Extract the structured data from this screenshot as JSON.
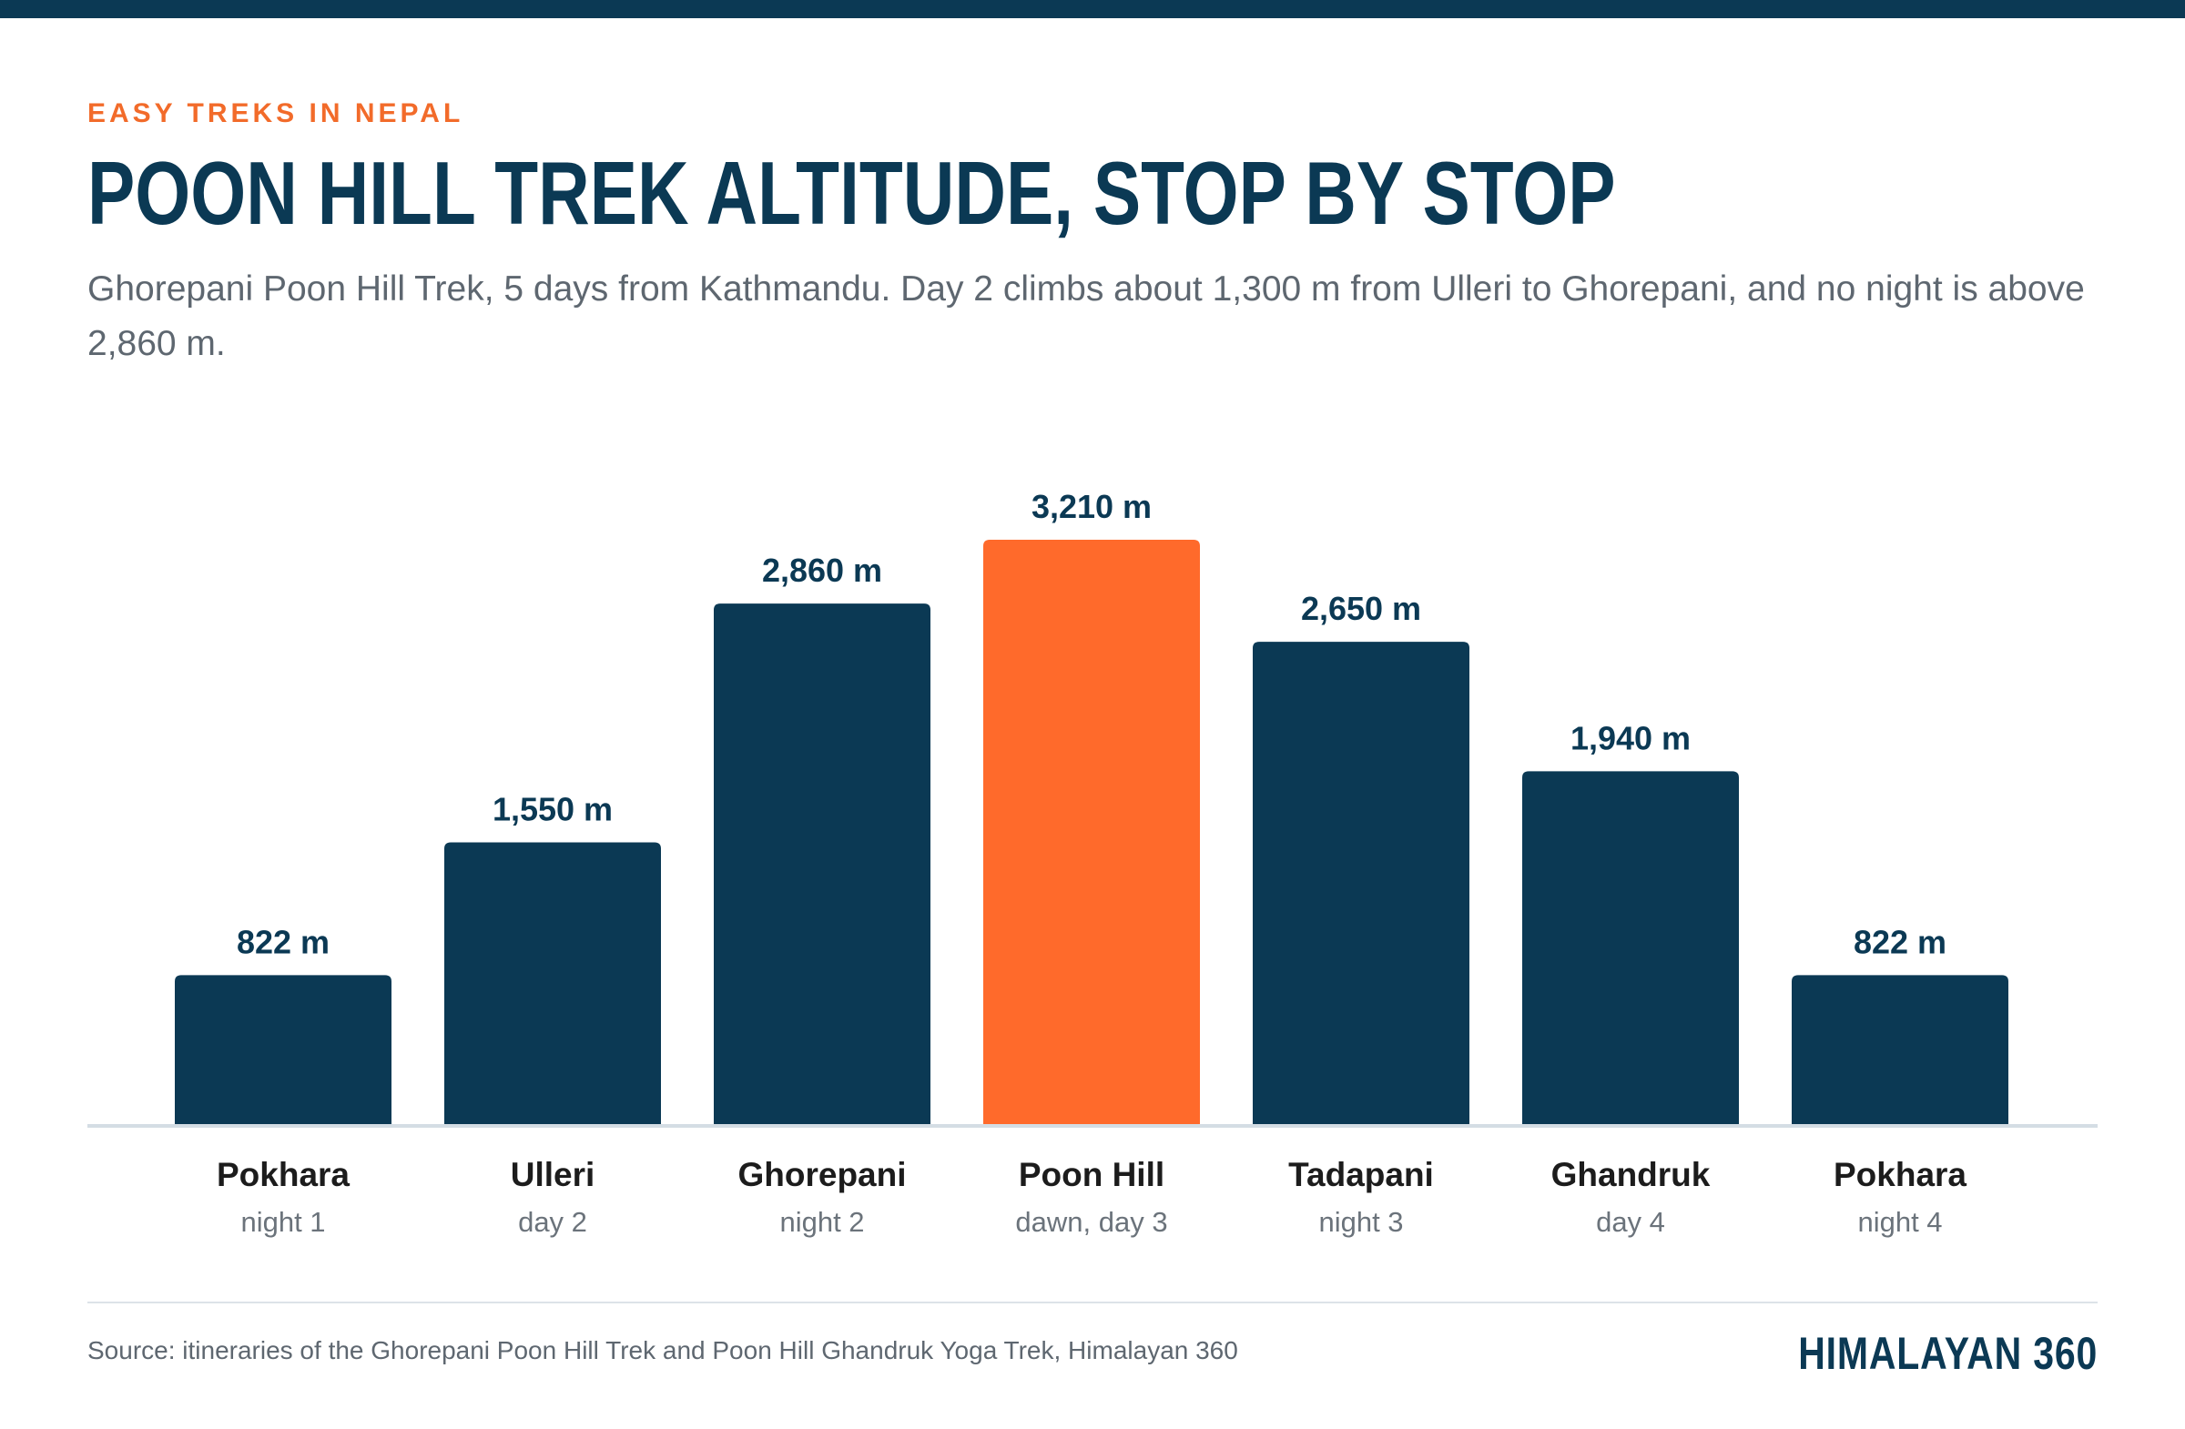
{
  "kicker": "EASY TREKS IN NEPAL",
  "title": "POON HILL TREK ALTITUDE, STOP BY STOP",
  "subtitle": "Ghorepani Poon Hill Trek, 5 days from Kathmandu. Day 2 climbs about 1,300 m from Ulleri to Ghorepani, and no night is above 2,860 m.",
  "source": "Source: itineraries of the Ghorepani Poon Hill Trek and Poon Hill Ghandruk Yoga Trek, Himalayan 360",
  "brand": "HIMALAYAN 360",
  "colors": {
    "bar": "#0b3954",
    "highlight": "#ff6a2b",
    "baseline": "#d4dde4",
    "kicker": "#f26b2a"
  },
  "chart_data": {
    "type": "bar",
    "categories": [
      "Pokhara",
      "Ulleri",
      "Ghorepani",
      "Poon Hill",
      "Tadapani",
      "Ghandruk",
      "Pokhara"
    ],
    "sublabels": [
      "night 1",
      "day 2",
      "night 2",
      "dawn, day 3",
      "night 3",
      "day 4",
      "night 4"
    ],
    "values": [
      822,
      1550,
      2860,
      3210,
      2650,
      1940,
      822
    ],
    "value_labels": [
      "822 m",
      "1,550 m",
      "2,860 m",
      "3,210 m",
      "2,650 m",
      "1,940 m",
      "822 m"
    ],
    "highlight_index": 3,
    "ylim": [
      0,
      3210
    ],
    "grid": false,
    "legend": "none",
    "unit": "m"
  }
}
